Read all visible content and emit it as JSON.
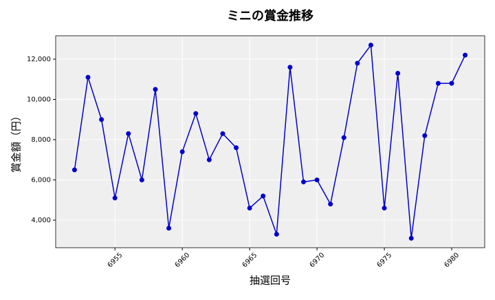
{
  "chart_data": {
    "type": "line",
    "title": "ミニの賞金推移",
    "x_label": "抽選回号",
    "y_label": "賞金額（円）",
    "x": [
      6952,
      6953,
      6954,
      6955,
      6956,
      6957,
      6958,
      6959,
      6960,
      6961,
      6962,
      6963,
      6964,
      6965,
      6966,
      6967,
      6968,
      6969,
      6970,
      6971,
      6972,
      6973,
      6974,
      6975,
      6976,
      6977,
      6978,
      6979,
      6980,
      6981
    ],
    "series": [
      {
        "name": "賞金額",
        "color": "#0000cc",
        "values": [
          6500,
          11100,
          9000,
          5100,
          8300,
          6000,
          10500,
          3600,
          7400,
          9300,
          7000,
          8300,
          7600,
          4600,
          5200,
          3300,
          11600,
          5900,
          6000,
          4800,
          8100,
          11800,
          12700,
          4600,
          11300,
          3100,
          8200,
          10800,
          10800,
          12200
        ]
      }
    ],
    "xlim": [
      6950.6,
      6982.45
    ],
    "xticks": [
      6955,
      6960,
      6965,
      6970,
      6975,
      6980
    ],
    "ylim": [
      2632,
      13162
    ],
    "yticks": [
      {
        "value": 4000,
        "label": "4,000"
      },
      {
        "value": 6000,
        "label": "6,000"
      },
      {
        "value": 8000,
        "label": "8,000"
      },
      {
        "value": 10000,
        "label": "10,000"
      },
      {
        "value": 12000,
        "label": "12,000"
      }
    ],
    "grid": true
  }
}
